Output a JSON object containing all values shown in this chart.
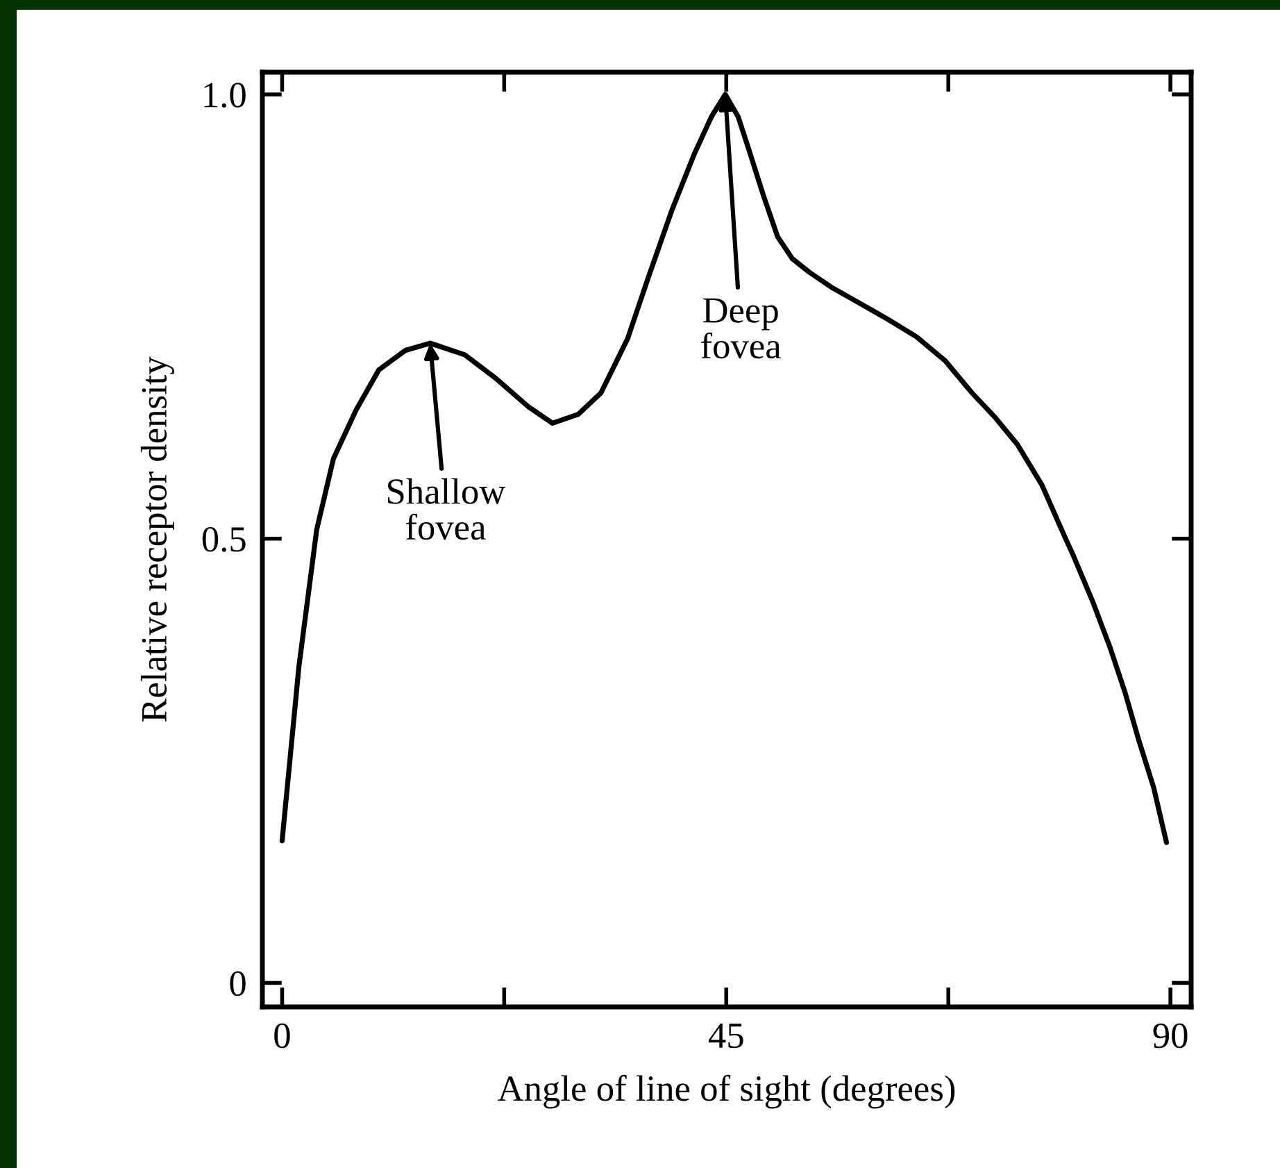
{
  "chart_data": {
    "type": "line",
    "xlabel": "Angle of line of sight (degrees)",
    "ylabel": "Relative receptor density",
    "x": [
      0,
      1.7,
      2.8,
      3.5,
      5.2,
      7.5,
      9.8,
      12.5,
      15.0,
      18.5,
      21.7,
      25.0,
      27.4,
      30.0,
      32.3,
      35.0,
      37.1,
      39.5,
      41.8,
      43.5,
      44.9,
      46.2,
      47.4,
      48.8,
      50.2,
      51.7,
      53.4,
      55.8,
      58.2,
      61.2,
      64.3,
      67.2,
      69.9,
      72.2,
      74.5,
      77.0,
      79.3,
      80.2,
      82.1,
      83.9,
      85.4,
      86.8,
      88.3,
      89.6
    ],
    "series": [
      {
        "color": "#000000",
        "values": [
          0.16,
          0.356,
          0.45,
          0.51,
          0.59,
          0.645,
          0.69,
          0.712,
          0.72,
          0.707,
          0.68,
          0.648,
          0.63,
          0.64,
          0.664,
          0.725,
          0.794,
          0.87,
          0.934,
          0.975,
          1.0,
          0.975,
          0.934,
          0.885,
          0.84,
          0.815,
          0.8,
          0.782,
          0.767,
          0.748,
          0.727,
          0.7,
          0.664,
          0.637,
          0.606,
          0.56,
          0.502,
          0.48,
          0.43,
          0.377,
          0.327,
          0.273,
          0.22,
          0.158
        ]
      }
    ],
    "xlim": [
      -2,
      92.1
    ],
    "ylim": [
      -0.027,
      1.025
    ],
    "xticks": [
      0,
      {
        "value": 22.5,
        "label": null
      },
      45,
      {
        "value": 67.5,
        "label": null
      },
      90
    ],
    "yticks": [
      0,
      0.5,
      {
        "value": 1.0,
        "label": "1.0"
      }
    ],
    "annotations": [
      {
        "text": "Shallow\nfovea",
        "x": 15.0,
        "y": 0.72
      },
      {
        "text": "Deep\nfovea",
        "x": 44.9,
        "y": 1.0
      }
    ],
    "grid": false,
    "marker": "none",
    "line_style": "solid"
  }
}
